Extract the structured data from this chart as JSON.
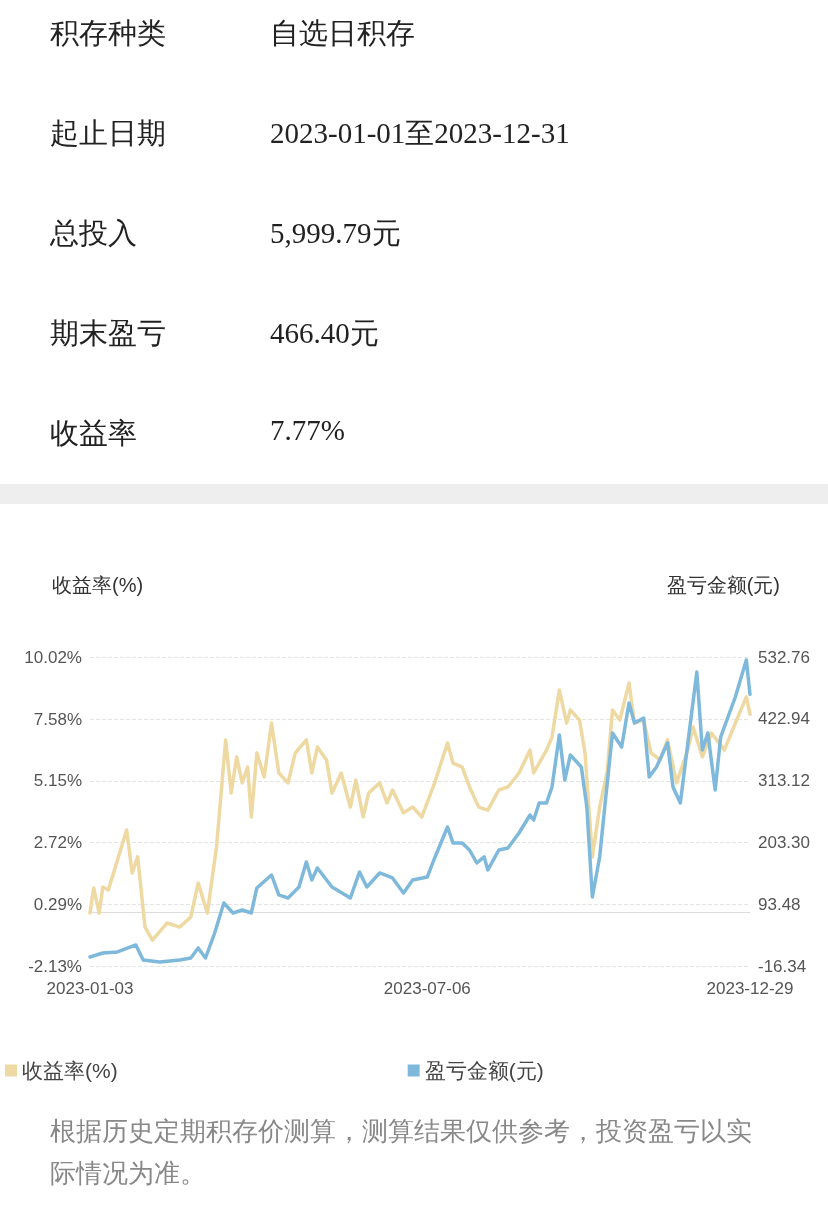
{
  "chart_data": [
    {
      "type": "other",
      "annotations": [
        "积存种类",
        "自选日积存",
        "起止日期",
        "2023-01-01至2023-12-31",
        "总投入",
        "5,999.79元",
        "期末盈亏",
        "466.40元",
        "收益率",
        "7.77%"
      ]
    },
    {
      "type": "line",
      "ylabel": "收益率(%)",
      "y2label": "盈亏金额(元)",
      "xlim": [
        "2023-01-03",
        "2023-12-29"
      ],
      "xticks": [
        "2023-01-03",
        "2023-07-06",
        "2023-12-29"
      ],
      "ylim": [
        -2.13,
        10.02
      ],
      "yticks": [
        {
          "value": -2.13,
          "label": "-2.13%"
        },
        {
          "value": 0.29,
          "label": "0.29%"
        },
        {
          "value": 2.72,
          "label": "2.72%"
        },
        {
          "value": 5.15,
          "label": "5.15%"
        },
        {
          "value": 7.58,
          "label": "7.58%"
        },
        {
          "value": 10.02,
          "label": "10.02%"
        }
      ],
      "y2lim": [
        -16.34,
        532.76
      ],
      "y2ticks": [
        -16.34,
        93.48,
        {
          "value": 203.3,
          "label": "203.30"
        },
        313.12,
        422.94,
        532.76
      ],
      "grid": "y",
      "legend": "bottom",
      "marker": "none",
      "line_style": "solid",
      "series": [
        {
          "name": "收益率(%)",
          "color": "#efd9a2",
          "x": [
            "2023-01-03",
            "2023-01-05",
            "2023-01-08",
            "2023-01-10",
            "2023-01-13",
            "2023-01-18",
            "2023-01-23",
            "2023-01-26",
            "2023-01-29",
            "2023-02-02",
            "2023-02-06",
            "2023-02-14",
            "2023-02-21",
            "2023-02-27",
            "2023-03-03",
            "2023-03-08",
            "2023-03-13",
            "2023-03-18",
            "2023-03-21",
            "2023-03-24",
            "2023-03-27",
            "2023-03-30",
            "2023-04-01",
            "2023-04-04",
            "2023-04-08",
            "2023-04-12",
            "2023-04-16",
            "2023-04-21",
            "2023-04-25",
            "2023-05-01",
            "2023-05-04",
            "2023-05-07",
            "2023-05-12",
            "2023-05-15",
            "2023-05-20",
            "2023-05-25",
            "2023-05-28",
            "2023-06-01",
            "2023-06-04",
            "2023-06-10",
            "2023-06-14",
            "2023-06-17",
            "2023-06-23",
            "2023-06-28",
            "2023-07-03",
            "2023-07-10",
            "2023-07-17",
            "2023-07-20",
            "2023-07-25",
            "2023-07-29",
            "2023-08-03",
            "2023-08-08",
            "2023-08-14",
            "2023-08-19",
            "2023-08-25",
            "2023-08-31",
            "2023-09-02",
            "2023-09-09",
            "2023-09-12",
            "2023-09-16",
            "2023-09-20",
            "2023-09-22",
            "2023-09-27",
            "2023-09-30",
            "2023-10-04",
            "2023-10-08",
            "2023-10-12",
            "2023-10-15",
            "2023-10-19",
            "2023-10-24",
            "2023-10-27",
            "2023-11-01",
            "2023-11-05",
            "2023-11-10",
            "2023-11-14",
            "2023-11-19",
            "2023-11-25",
            "2023-11-28",
            "2023-12-03",
            "2023-12-08",
            "2023-12-15",
            "2023-12-21",
            "2023-12-27",
            "2023-12-29"
          ],
          "values": [
            -0.05,
            0.94,
            -0.05,
            0.98,
            0.86,
            2.04,
            3.22,
            1.53,
            2.16,
            -0.6,
            -1.11,
            -0.44,
            -0.6,
            -0.2,
            1.13,
            -0.05,
            2.55,
            6.76,
            4.67,
            6.09,
            5.07,
            5.69,
            3.73,
            6.25,
            5.3,
            7.42,
            5.46,
            5.07,
            6.25,
            6.76,
            5.46,
            6.48,
            5.97,
            4.67,
            5.46,
            4.12,
            5.18,
            3.73,
            4.67,
            5.07,
            4.28,
            4.79,
            3.89,
            4.12,
            3.73,
            5.07,
            6.64,
            5.85,
            5.69,
            4.91,
            4.12,
            4.0,
            4.79,
            4.91,
            5.46,
            6.36,
            5.46,
            6.36,
            6.87,
            8.72,
            7.42,
            7.94,
            7.54,
            6.25,
            2.16,
            4.12,
            5.46,
            7.94,
            7.54,
            9.0,
            7.42,
            7.54,
            6.25,
            5.97,
            6.76,
            5.07,
            6.36,
            7.27,
            6.09,
            7.03,
            6.36,
            7.42,
            8.45,
            7.77
          ]
        },
        {
          "name": "盈亏金额(元)",
          "color": "#7eb9dc",
          "axis": "y2",
          "x": [
            "2023-01-03",
            "2023-01-10",
            "2023-01-18",
            "2023-01-28",
            "2023-02-01",
            "2023-02-10",
            "2023-02-21",
            "2023-02-27",
            "2023-03-03",
            "2023-03-07",
            "2023-03-12",
            "2023-03-17",
            "2023-03-22",
            "2023-03-27",
            "2023-04-01",
            "2023-04-04",
            "2023-04-12",
            "2023-04-16",
            "2023-04-21",
            "2023-04-27",
            "2023-05-01",
            "2023-05-04",
            "2023-05-07",
            "2023-05-15",
            "2023-05-25",
            "2023-05-30",
            "2023-06-03",
            "2023-06-10",
            "2023-06-17",
            "2023-06-23",
            "2023-06-28",
            "2023-07-06",
            "2023-07-10",
            "2023-07-17",
            "2023-07-20",
            "2023-07-25",
            "2023-07-29",
            "2023-08-02",
            "2023-08-06",
            "2023-08-08",
            "2023-08-14",
            "2023-08-19",
            "2023-08-25",
            "2023-08-31",
            "2023-09-02",
            "2023-09-05",
            "2023-09-09",
            "2023-09-12",
            "2023-09-16",
            "2023-09-19",
            "2023-09-22",
            "2023-09-28",
            "2023-10-01",
            "2023-10-04",
            "2023-10-08",
            "2023-10-11",
            "2023-10-15",
            "2023-10-20",
            "2023-10-24",
            "2023-10-27",
            "2023-11-01",
            "2023-11-04",
            "2023-11-08",
            "2023-11-14",
            "2023-11-17",
            "2023-11-21",
            "2023-11-26",
            "2023-11-30",
            "2023-12-03",
            "2023-12-06",
            "2023-12-10",
            "2023-12-13",
            "2023-12-21",
            "2023-12-27",
            "2023-12-29"
          ],
          "values": [
            -0.3,
            6.8,
            8.6,
            21.0,
            -5.7,
            -9.2,
            -5.7,
            -2.1,
            15.7,
            -2.1,
            42.3,
            95.7,
            77.9,
            83.2,
            77.9,
            122.3,
            145.4,
            109.9,
            104.5,
            124.1,
            168.5,
            136.5,
            157.9,
            124.1,
            104.5,
            150.7,
            124.1,
            149.0,
            140.1,
            113.4,
            136.5,
            141.9,
            175.6,
            230.7,
            202.3,
            202.3,
            189.8,
            166.7,
            177.4,
            154.3,
            189.8,
            193.4,
            220.0,
            252.0,
            243.1,
            273.4,
            273.4,
            301.8,
            394.2,
            314.2,
            358.7,
            337.3,
            266.2,
            106.3,
            177.4,
            273.4,
            397.7,
            372.9,
            451.1,
            415.5,
            424.4,
            319.6,
            337.3,
            380.0,
            301.8,
            273.4,
            403.1,
            506.1,
            367.5,
            397.7,
            296.5,
            390.6,
            461.7,
            527.5,
            466.4
          ]
        }
      ],
      "annotations": [
        "根据历史定期积存价测算，测算结果仅供参考，投资盈亏以实际情况为准。"
      ]
    }
  ]
}
